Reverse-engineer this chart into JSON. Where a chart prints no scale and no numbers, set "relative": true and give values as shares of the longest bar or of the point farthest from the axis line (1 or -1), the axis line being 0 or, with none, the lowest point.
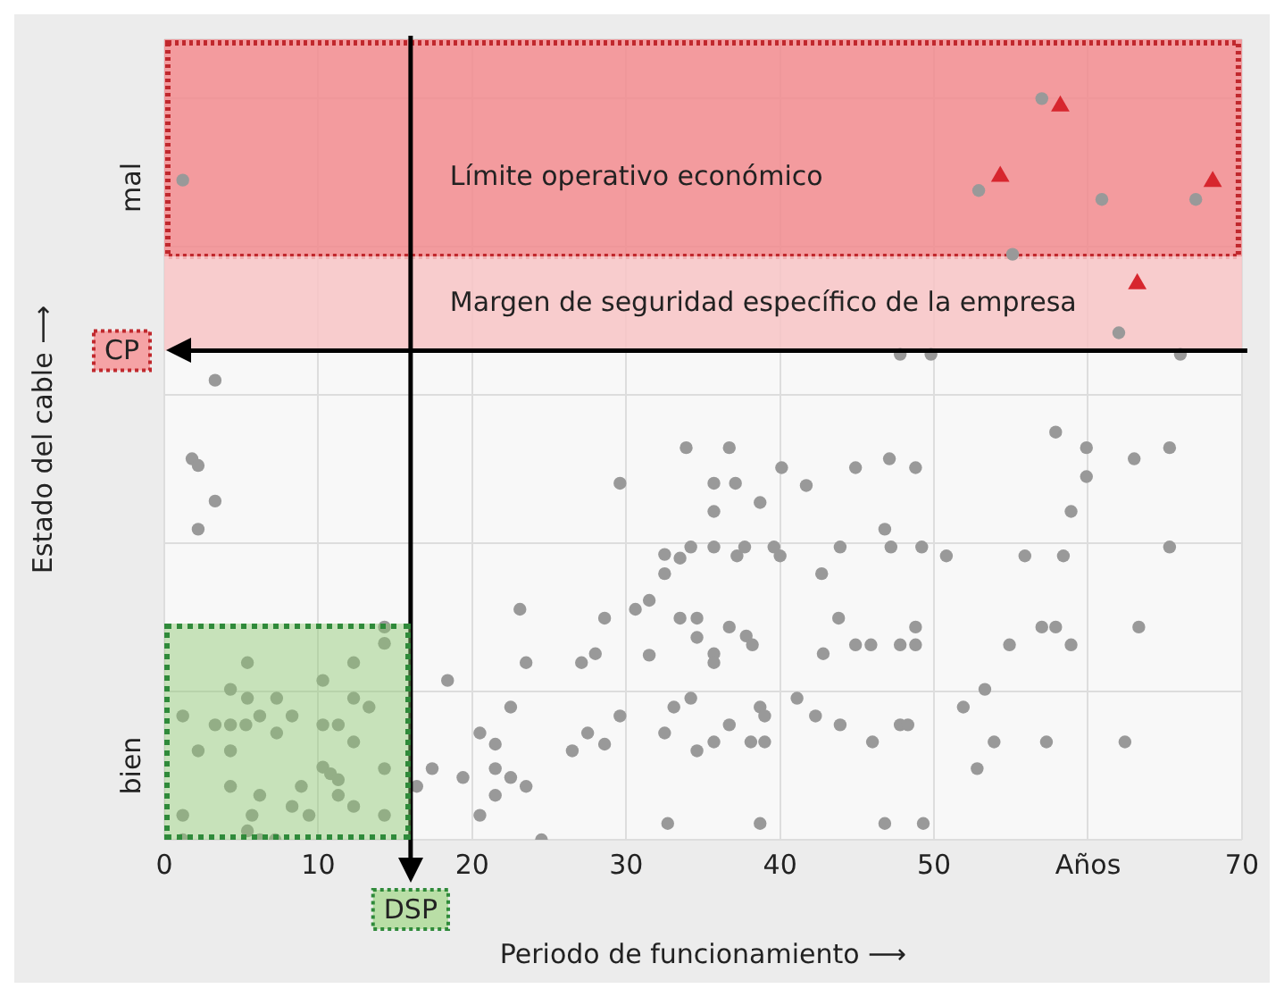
{
  "chart_data": {
    "type": "scatter",
    "xlabel": "Periodo de funcionamiento ⟶",
    "ylabel": "Estado del cable ⟶",
    "relative": true,
    "xlim": [
      0,
      70
    ],
    "xticks": [
      0,
      10,
      20,
      30,
      40,
      50,
      {
        "value": 60,
        "label": "Años"
      },
      70
    ],
    "grid": true,
    "legend": false,
    "marker": "circle",
    "annotations": [
      "bien",
      "mal"
    ],
    "ref_lines": [
      {
        "axis": "y",
        "value": 0.66,
        "label": "CP",
        "color": "#000000"
      },
      {
        "axis": "x",
        "value": 16,
        "label": "DSP",
        "color": "#000000"
      }
    ],
    "bands": [
      {
        "axis": "y",
        "from": 0.787,
        "to": 1.08,
        "label": "Límite operativo económico",
        "color": "#f28b8e"
      },
      {
        "axis": "y",
        "from": 0.66,
        "to": 0.787,
        "label": "Margen de seguridad específico de la empresa",
        "color": "#f8c4c6"
      }
    ],
    "series": [
      {
        "type": "scatter",
        "color": "#999999",
        "x": [
          1.2,
          3.3,
          57.0,
          52.9,
          60.9,
          67.0,
          55.1,
          62.0,
          47.8,
          49.8,
          66.0,
          1.8,
          2.2,
          3.3,
          2.2,
          33.9,
          29.6,
          32.5,
          33.5,
          34.2,
          32.5,
          31.5,
          30.6,
          28.6,
          23.1,
          33.5,
          34.6,
          34.6,
          31.5,
          28.0,
          27.1,
          23.5,
          18.4,
          22.5,
          34.2,
          33.1,
          29.6,
          32.5,
          34.6,
          27.5,
          28.6,
          26.5,
          20.5,
          21.5,
          17.4,
          16.4,
          19.4,
          21.5,
          22.5,
          23.5,
          21.5,
          20.5,
          24.5,
          32.7,
          14.3,
          14.3,
          5.4,
          12.3,
          10.3,
          4.3,
          5.4,
          7.3,
          12.3,
          13.3,
          1.2,
          6.2,
          8.3,
          3.3,
          4.3,
          5.3,
          10.3,
          11.3,
          7.3,
          2.2,
          4.3,
          12.3,
          10.3,
          10.8,
          11.3,
          14.3,
          4.3,
          6.2,
          8.9,
          11.3,
          12.3,
          8.3,
          5.7,
          9.4,
          1.2,
          14.3,
          5.4,
          1.2,
          6.2,
          7.2,
          36.7,
          40.1,
          35.7,
          37.1,
          38.7,
          35.7,
          41.7,
          44.9,
          47.1,
          48.8,
          57.9,
          59.9,
          63.0,
          65.3,
          59.9,
          58.9,
          35.7,
          37.2,
          37.7,
          39.6,
          40.0,
          43.9,
          46.8,
          47.2,
          49.2,
          50.8,
          42.7,
          55.9,
          58.4,
          65.3,
          36.7,
          37.8,
          38.2,
          35.7,
          35.7,
          43.8,
          42.8,
          44.9,
          45.9,
          47.8,
          48.8,
          48.8,
          54.9,
          57.0,
          57.9,
          58.9,
          63.3,
          38.7,
          39.0,
          41.1,
          42.3,
          43.9,
          36.7,
          35.7,
          38.1,
          39.0,
          46.0,
          47.8,
          48.3,
          51.9,
          53.3,
          53.9,
          57.3,
          62.4,
          52.8,
          38.7,
          46.8,
          49.3
        ],
        "values": [
          0.89,
          0.62,
          1,
          0.876,
          0.864,
          0.864,
          0.79,
          0.684,
          0.655,
          0.655,
          0.655,
          0.514,
          0.505,
          0.457,
          0.419,
          0.529,
          0.481,
          0.385,
          0.38,
          0.395,
          0.359,
          0.323,
          0.311,
          0.299,
          0.311,
          0.299,
          0.299,
          0.273,
          0.249,
          0.251,
          0.239,
          0.239,
          0.215,
          0.179,
          0.191,
          0.179,
          0.167,
          0.144,
          0.12,
          0.144,
          0.129,
          0.12,
          0.144,
          0.129,
          0.096,
          0.072,
          0.084,
          0.096,
          0.084,
          0.072,
          0.06,
          0.033,
          0,
          0.022,
          0.287,
          0.265,
          0.239,
          0.239,
          0.215,
          0.203,
          0.191,
          0.191,
          0.191,
          0.179,
          0.167,
          0.167,
          0.167,
          0.155,
          0.155,
          0.155,
          0.155,
          0.155,
          0.144,
          0.12,
          0.12,
          0.132,
          0.098,
          0.089,
          0.081,
          0.096,
          0.072,
          0.06,
          0.072,
          0.06,
          0.045,
          0.045,
          0.033,
          0.033,
          0.033,
          0.033,
          0.012,
          0,
          0,
          0,
          0.529,
          0.502,
          0.481,
          0.481,
          0.455,
          0.443,
          0.478,
          0.502,
          0.514,
          0.502,
          0.55,
          0.529,
          0.514,
          0.529,
          0.49,
          0.443,
          0.395,
          0.383,
          0.395,
          0.395,
          0.383,
          0.395,
          0.419,
          0.395,
          0.395,
          0.383,
          0.359,
          0.383,
          0.383,
          0.395,
          0.287,
          0.275,
          0.263,
          0.251,
          0.239,
          0.299,
          0.251,
          0.263,
          0.263,
          0.263,
          0.263,
          0.287,
          0.263,
          0.287,
          0.287,
          0.263,
          0.287,
          0.179,
          0.167,
          0.191,
          0.167,
          0.155,
          0.155,
          0.132,
          0.132,
          0.132,
          0.132,
          0.155,
          0.155,
          0.179,
          0.203,
          0.132,
          0.132,
          0.132,
          0.096,
          0.022,
          0.022,
          0.022
        ]
      },
      {
        "type": "scatter",
        "color": "#d7262e",
        "marker": "triangle",
        "x": [
          58.2,
          54.3,
          68.1,
          63.2
        ],
        "values": [
          0.99,
          0.895,
          0.888,
          0.75
        ]
      }
    ]
  }
}
